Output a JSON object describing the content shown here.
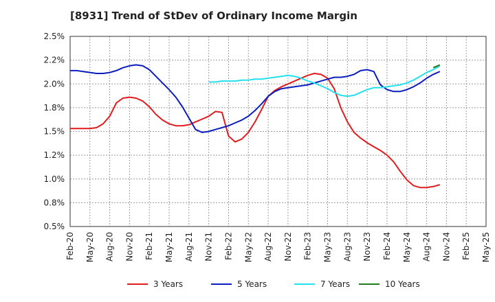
{
  "title": "[8931]  Trend of StDev of Ordinary Income Margin",
  "chart_data": {
    "type": "line",
    "title": "[8931]  Trend of StDev of Ordinary Income Margin",
    "xlabel": "",
    "ylabel": "",
    "ylim": [
      0.5,
      2.5
    ],
    "grid": true,
    "legend_position": "bottom",
    "y_ticks": [
      "0.5%",
      "0.8%",
      "1.0%",
      "1.2%",
      "1.5%",
      "1.8%",
      "2.0%",
      "2.2%",
      "2.5%"
    ],
    "x_ticks": [
      "Feb-20",
      "May-20",
      "Aug-20",
      "Nov-20",
      "Feb-21",
      "May-21",
      "Aug-21",
      "Nov-21",
      "Feb-22",
      "May-22",
      "Aug-22",
      "Nov-22",
      "Feb-23",
      "May-23",
      "Aug-23",
      "Nov-23",
      "Feb-24",
      "May-24",
      "Aug-24",
      "Nov-24",
      "Feb-25",
      "May-25"
    ],
    "series": [
      {
        "name": "3 Years",
        "color": "#e31a1c",
        "points": [
          [
            0,
            1.53
          ],
          [
            1,
            1.53
          ],
          [
            2,
            1.53
          ],
          [
            3,
            1.53
          ],
          [
            4,
            1.54
          ],
          [
            5,
            1.58
          ],
          [
            6,
            1.66
          ],
          [
            7,
            1.8
          ],
          [
            8,
            1.85
          ],
          [
            9,
            1.86
          ],
          [
            10,
            1.85
          ],
          [
            11,
            1.82
          ],
          [
            12,
            1.76
          ],
          [
            13,
            1.68
          ],
          [
            14,
            1.62
          ],
          [
            15,
            1.58
          ],
          [
            16,
            1.56
          ],
          [
            17,
            1.56
          ],
          [
            18,
            1.57
          ],
          [
            19,
            1.6
          ],
          [
            20,
            1.63
          ],
          [
            21,
            1.66
          ],
          [
            22,
            1.71
          ],
          [
            23,
            1.7
          ],
          [
            24,
            1.45
          ],
          [
            25,
            1.39
          ],
          [
            26,
            1.42
          ],
          [
            27,
            1.49
          ],
          [
            28,
            1.6
          ],
          [
            29,
            1.73
          ],
          [
            30,
            1.87
          ],
          [
            31,
            1.93
          ],
          [
            32,
            1.97
          ],
          [
            33,
            2.0
          ],
          [
            34,
            2.03
          ],
          [
            35,
            2.06
          ],
          [
            36,
            2.09
          ],
          [
            37,
            2.11
          ],
          [
            38,
            2.1
          ],
          [
            39,
            2.06
          ],
          [
            40,
            1.95
          ],
          [
            41,
            1.75
          ],
          [
            42,
            1.6
          ],
          [
            43,
            1.49
          ],
          [
            44,
            1.43
          ],
          [
            45,
            1.38
          ],
          [
            46,
            1.34
          ],
          [
            47,
            1.3
          ],
          [
            48,
            1.25
          ],
          [
            49,
            1.18
          ],
          [
            50,
            1.08
          ],
          [
            51,
            0.99
          ],
          [
            52,
            0.93
          ],
          [
            53,
            0.91
          ],
          [
            54,
            0.91
          ],
          [
            55,
            0.92
          ],
          [
            56,
            0.94
          ]
        ]
      },
      {
        "name": "5 Years",
        "color": "#0a1dbf",
        "points": [
          [
            0,
            2.14
          ],
          [
            1,
            2.14
          ],
          [
            2,
            2.13
          ],
          [
            3,
            2.12
          ],
          [
            4,
            2.11
          ],
          [
            5,
            2.11
          ],
          [
            6,
            2.12
          ],
          [
            7,
            2.14
          ],
          [
            8,
            2.17
          ],
          [
            9,
            2.19
          ],
          [
            10,
            2.2
          ],
          [
            11,
            2.19
          ],
          [
            12,
            2.15
          ],
          [
            13,
            2.08
          ],
          [
            14,
            2.01
          ],
          [
            15,
            1.94
          ],
          [
            16,
            1.86
          ],
          [
            17,
            1.76
          ],
          [
            18,
            1.64
          ],
          [
            19,
            1.52
          ],
          [
            20,
            1.49
          ],
          [
            21,
            1.5
          ],
          [
            22,
            1.52
          ],
          [
            23,
            1.54
          ],
          [
            24,
            1.56
          ],
          [
            25,
            1.59
          ],
          [
            26,
            1.62
          ],
          [
            27,
            1.66
          ],
          [
            28,
            1.72
          ],
          [
            29,
            1.79
          ],
          [
            30,
            1.87
          ],
          [
            31,
            1.92
          ],
          [
            32,
            1.95
          ],
          [
            33,
            1.96
          ],
          [
            34,
            1.97
          ],
          [
            35,
            1.98
          ],
          [
            36,
            1.99
          ],
          [
            37,
            2.01
          ],
          [
            38,
            2.03
          ],
          [
            39,
            2.05
          ],
          [
            40,
            2.07
          ],
          [
            41,
            2.07
          ],
          [
            42,
            2.08
          ],
          [
            43,
            2.1
          ],
          [
            44,
            2.14
          ],
          [
            45,
            2.15
          ],
          [
            46,
            2.13
          ],
          [
            47,
            1.99
          ],
          [
            48,
            1.94
          ],
          [
            49,
            1.92
          ],
          [
            50,
            1.92
          ],
          [
            51,
            1.94
          ],
          [
            52,
            1.97
          ],
          [
            53,
            2.01
          ],
          [
            54,
            2.06
          ],
          [
            55,
            2.1
          ],
          [
            56,
            2.13
          ]
        ]
      },
      {
        "name": "7 Years",
        "color": "#22e0ee",
        "points": [
          [
            21,
            2.02
          ],
          [
            22,
            2.02
          ],
          [
            23,
            2.03
          ],
          [
            24,
            2.03
          ],
          [
            25,
            2.03
          ],
          [
            26,
            2.04
          ],
          [
            27,
            2.04
          ],
          [
            28,
            2.05
          ],
          [
            29,
            2.05
          ],
          [
            30,
            2.06
          ],
          [
            31,
            2.07
          ],
          [
            32,
            2.08
          ],
          [
            33,
            2.09
          ],
          [
            34,
            2.08
          ],
          [
            35,
            2.06
          ],
          [
            36,
            2.03
          ],
          [
            37,
            2.01
          ],
          [
            38,
            1.98
          ],
          [
            39,
            1.95
          ],
          [
            40,
            1.91
          ],
          [
            41,
            1.88
          ],
          [
            42,
            1.87
          ],
          [
            43,
            1.88
          ],
          [
            44,
            1.91
          ],
          [
            45,
            1.94
          ],
          [
            46,
            1.96
          ],
          [
            47,
            1.96
          ],
          [
            48,
            1.97
          ],
          [
            49,
            1.98
          ],
          [
            50,
            1.99
          ],
          [
            51,
            2.01
          ],
          [
            52,
            2.04
          ],
          [
            53,
            2.08
          ],
          [
            54,
            2.12
          ],
          [
            55,
            2.15
          ],
          [
            56,
            2.19
          ]
        ]
      },
      {
        "name": "10 Years",
        "color": "#1e7b1e",
        "points": [
          [
            55,
            2.17
          ],
          [
            56,
            2.2
          ]
        ]
      }
    ]
  }
}
